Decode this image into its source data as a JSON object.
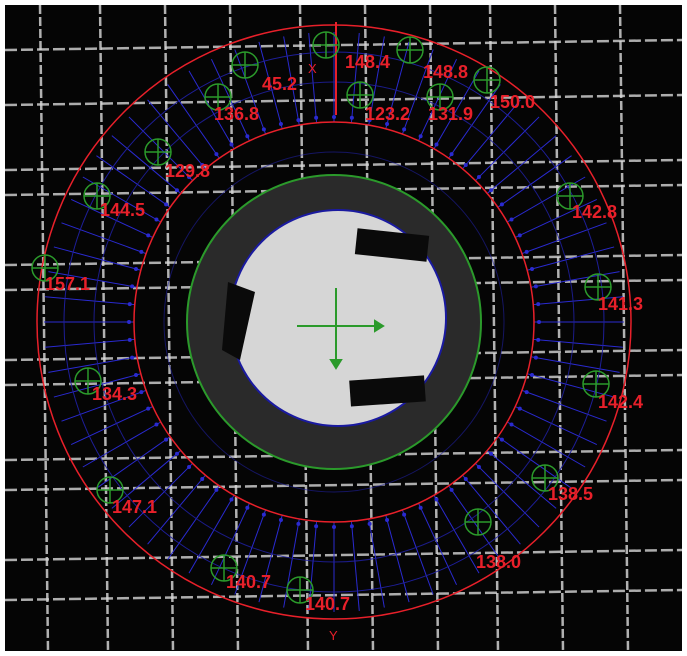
{
  "axes": {
    "x": "X",
    "y": "Y"
  },
  "measurements": [
    "148.4",
    "148.8",
    "45.2",
    "150.0",
    "136.8",
    "123.2",
    "131.9",
    "129.8",
    "144.5",
    "142.8",
    "157.1",
    "141.3",
    "134.3",
    "142.4",
    "147.1",
    "138.5",
    "140.7",
    "138.0",
    "140.7"
  ]
}
